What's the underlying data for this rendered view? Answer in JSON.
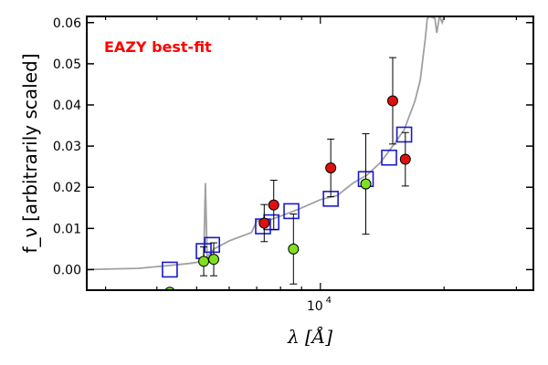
{
  "chart_data": {
    "type": "scatter",
    "title": "",
    "xlabel": "λ [Å]",
    "ylabel": "f_ν [arbitrarily scaled]",
    "xscale": "log",
    "xlim": [
      2700,
      33000
    ],
    "ylim": [
      -0.005,
      0.0615
    ],
    "grid": false,
    "x_tick_labels": [
      {
        "value": 10000,
        "base": "10",
        "exp": "4"
      }
    ],
    "y_ticks": [
      0.0,
      0.01,
      0.02,
      0.03,
      0.04,
      0.05,
      0.06
    ],
    "y_tick_labels": [
      "0.00",
      "0.01",
      "0.02",
      "0.03",
      "0.04",
      "0.05",
      "0.06"
    ],
    "annotation": {
      "text": "EAZY best-fit",
      "color": "#ff0000"
    },
    "colors": {
      "template": "#a0a0a0",
      "model_squares": "#1a1acc",
      "red_points": "#e01010",
      "green_points": "#7fe020",
      "errorbars": "#000000"
    },
    "series": [
      {
        "kind": "line",
        "role": "best-fit template",
        "x": [
          2700,
          3600,
          4300,
          4800,
          5200,
          5250,
          5300,
          5500,
          6000,
          6800,
          7000,
          7500,
          8000,
          8500,
          9000,
          10000,
          11000,
          12000,
          13000,
          14000,
          15000,
          16000,
          17000,
          17500,
          18000,
          18200,
          18500,
          19000,
          19200,
          19500,
          19800,
          20000
        ],
        "y": [
          0.0,
          0.0003,
          0.001,
          0.0015,
          0.002,
          0.021,
          0.003,
          0.005,
          0.007,
          0.009,
          0.0118,
          0.012,
          0.013,
          0.014,
          0.015,
          0.017,
          0.018,
          0.021,
          0.023,
          0.026,
          0.03,
          0.034,
          0.041,
          0.046,
          0.056,
          0.061,
          0.0615,
          0.061,
          0.0575,
          0.0615,
          0.06,
          0.0615
        ]
      },
      {
        "kind": "squares",
        "role": "model photometry",
        "x": [
          4300,
          5200,
          5450,
          7250,
          7600,
          8500,
          10600,
          12900,
          14700,
          16000
        ],
        "y": [
          0.0,
          0.0045,
          0.006,
          0.0105,
          0.0115,
          0.0142,
          0.0172,
          0.022,
          0.0272,
          0.0328
        ]
      },
      {
        "kind": "points",
        "role": "red detections",
        "x": [
          7300,
          7700,
          10600,
          15000,
          16100
        ],
        "y": [
          0.0113,
          0.0157,
          0.0247,
          0.041,
          0.0268
        ],
        "yerr": [
          0.0045,
          0.006,
          0.007,
          0.0105,
          0.0065
        ]
      },
      {
        "kind": "points",
        "role": "green detections",
        "x": [
          4300,
          5200,
          5500,
          8600,
          12900
        ],
        "y": [
          -0.0055,
          0.002,
          0.0025,
          0.005,
          0.0208
        ],
        "yerr": [
          0.0,
          0.0035,
          0.004,
          0.0085,
          0.0122
        ]
      }
    ]
  }
}
